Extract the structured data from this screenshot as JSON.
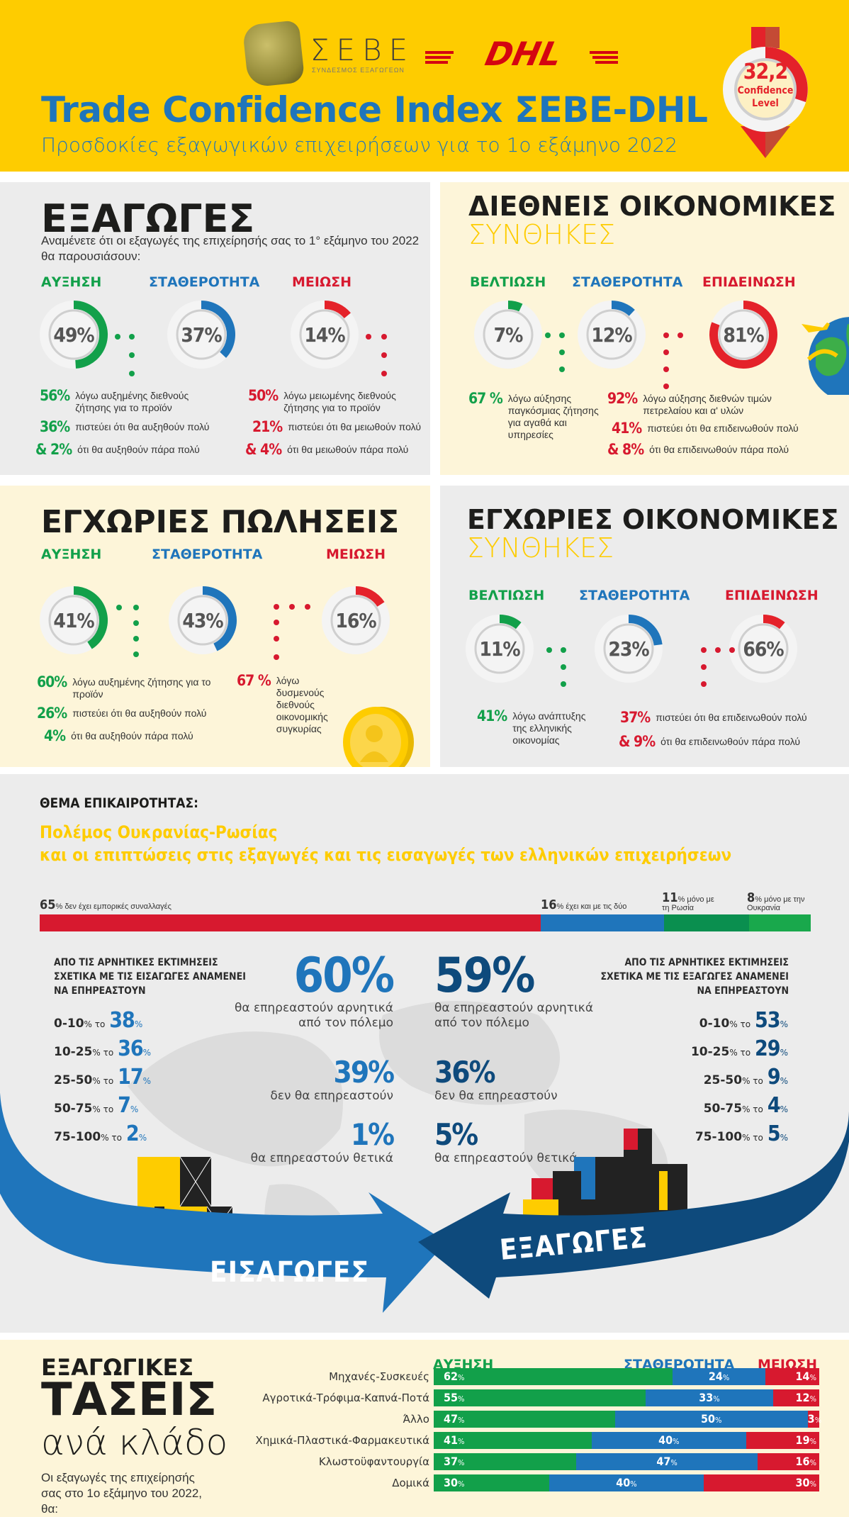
{
  "header": {
    "sebe_name": "ΣΕΒΕ",
    "sebe_subtitle": "ΣΥΝΔΕΣΜΟΣ ΕΞΑΓΩΓΕΩΝ",
    "dhl_logo": "DHL",
    "title": "Trade Confidence Index ΣΕΒΕ-DHL",
    "subtitle": "Προσδοκίες εξαγωγικών επιχειρήσεων για το 1ο εξάμηνο 2022",
    "confidence": {
      "value": "32,2",
      "label1": "Confidence",
      "label2": "Level",
      "icon": "down-arrow-gauge-icon"
    }
  },
  "colors": {
    "yellow": "#fecc00",
    "green": "#12a04a",
    "blue": "#1f75bb",
    "red": "#d7192f",
    "dark_blue": "#0e4a7c",
    "grey_bg": "#ececec",
    "cream_bg": "#fdf5d9"
  },
  "exports": {
    "title": "ΕΞΑΓΩΓΕΣ",
    "question": "Αναμένετε ότι οι εξαγωγές της επιχείρησής σας το 1° εξάμηνο του 2022 θα παρουσιάσουν:",
    "labels": [
      "ΑΥΞΗΣΗ",
      "ΣΤΑΘΕΡΟΤΗΤΑ",
      "ΜΕΙΩΣΗ"
    ],
    "values": [
      "49%",
      "37%",
      "14%"
    ],
    "increase_stats": [
      {
        "num": "56%",
        "text": "λόγω αυξημένης διεθνούς ζήτησης για το προϊόν"
      },
      {
        "num": "36%",
        "text": "πιστεύει ότι θα αυξηθούν πολύ"
      },
      {
        "num": "& 2%",
        "text": "ότι θα αυξηθούν πάρα πολύ"
      }
    ],
    "decrease_stats": [
      {
        "num": "50%",
        "text": "λόγω μειωμένης διεθνούς ζήτησης για το προϊόν"
      },
      {
        "num": "21%",
        "text": "πιστεύει ότι θα μειωθούν πολύ"
      },
      {
        "num": "& 4%",
        "text": "ότι θα μειωθούν πάρα πολύ"
      }
    ]
  },
  "intl": {
    "title": "ΔΙΕΘΝΕΙΣ ΟΙΚΟΝΟΜΙΚΕΣ",
    "title2": "ΣΥΝΘΗΚΕΣ",
    "labels": [
      "ΒΕΛΤΙΩΣΗ",
      "ΣΤΑΘΕΡΟΤΗΤΑ",
      "ΕΠΙΔΕΙΝΩΣΗ"
    ],
    "values": [
      "7%",
      "12%",
      "81%"
    ],
    "improve_stats": [
      {
        "num": "67 %",
        "text": "λόγω αύξησης παγκόσμιας ζήτησης για αγαθά και υπηρεσίες"
      }
    ],
    "worsen_stats": [
      {
        "num": "92%",
        "text": "λόγω αύξησης διεθνών τιμών πετρελαίου και α' υλών"
      },
      {
        "num": "41%",
        "text": "πιστεύει ότι θα επιδεινωθούν πολύ"
      },
      {
        "num": "& 8%",
        "text": "ότι θα επιδεινωθούν πάρα πολύ"
      }
    ]
  },
  "domestic_sales": {
    "title": "ΕΓΧΩΡΙΕΣ ΠΩΛΗΣΕΙΣ",
    "labels": [
      "ΑΥΞΗΣΗ",
      "ΣΤΑΘΕΡΟΤΗΤΑ",
      "ΜΕΙΩΣΗ"
    ],
    "values": [
      "41%",
      "43%",
      "16%"
    ],
    "increase_stats": [
      {
        "num": "60%",
        "text": "λόγω αυξημένης ζήτησης για το προϊόν"
      },
      {
        "num": "26%",
        "text": "πιστεύει ότι θα αυξηθούν πολύ"
      },
      {
        "num": "4%",
        "text": "ότι θα αυξηθούν πάρα πολύ"
      }
    ],
    "decrease_stats": [
      {
        "num": "67 %",
        "text": "λόγω δυσμενούς διεθνούς οικονομικής συγκυρίας"
      }
    ]
  },
  "domestic_econ": {
    "title": "ΕΓΧΩΡΙΕΣ ΟΙΚΟΝΟΜΙΚΕΣ",
    "title2": "ΣΥΝΘΗΚΕΣ",
    "labels": [
      "ΒΕΛΤΙΩΣΗ",
      "ΣΤΑΘΕΡΟΤΗΤΑ",
      "ΕΠΙΔΕΙΝΩΣΗ"
    ],
    "values": [
      "11%",
      "23%",
      "66%"
    ],
    "improve_stats": [
      {
        "num": "41%",
        "text": "λόγω ανάπτυξης της ελληνικής οικονομίας"
      }
    ],
    "worsen_stats": [
      {
        "num": "37%",
        "text": "πιστεύει ότι θα επιδεινωθούν πολύ"
      },
      {
        "num": "& 9%",
        "text": "ότι θα επιδεινωθούν πάρα πολύ"
      }
    ]
  },
  "topic": {
    "kicker": "ΘΕΜΑ ΕΠΙΚΑΙΡΟΤΗΤΑΣ:",
    "headline1": "Πολέμος Ουκρανίας-Ρωσίας",
    "headline2": "και οι επιπτώσεις στις εξαγωγές και τις εισαγωγές των ελληνικών επιχειρήσεων",
    "trade_bar": [
      {
        "num": "65",
        "text": "% δεν έχει εμπορικές συναλλαγές",
        "value": 65,
        "color": "#d7192f"
      },
      {
        "num": "16",
        "text": "% έχει και με τις δύο",
        "value": 16,
        "color": "#1f75bb"
      },
      {
        "num": "11",
        "text": "% μόνο με τη Ρωσία",
        "value": 11,
        "color": "#0a8f4f"
      },
      {
        "num": "8",
        "text": "% μόνο με την Ουκρανία",
        "value": 8,
        "color": "#19a84c"
      }
    ],
    "imports": {
      "heading": "ΑΠΟ ΤΙΣ ΑΡΝΗΤΙΚΕΣ ΕΚΤΙΜΗΣΕΙΣ ΣΧΕΤΙΚΑ ΜΕ ΤΙΣ ΕΙΣΑΓΩΓΕΣ ΑΝΑΜΕΝΕΙ ΝΑ ΕΠΗΡΕΑΣΤΟΥΝ",
      "ranges": [
        {
          "range": "0-10",
          "value": "38"
        },
        {
          "range": "10-25",
          "value": "36"
        },
        {
          "range": "25-50",
          "value": "17"
        },
        {
          "range": "50-75",
          "value": "7"
        },
        {
          "range": "75-100",
          "value": "2"
        }
      ],
      "big": [
        {
          "value": "60%",
          "text": "θα επηρεαστούν αρνητικά από τον πόλεμο"
        },
        {
          "value": "39%",
          "text": "δεν θα επηρεαστούν"
        },
        {
          "value": "1%",
          "text": "θα επηρεαστούν θετικά"
        }
      ],
      "arrow_label": "ΕΙΣΑΓΩΓΕΣ"
    },
    "exports": {
      "heading": "ΑΠΟ ΤΙΣ ΑΡΝΗΤΙΚΕΣ ΕΚΤΙΜΗΣΕΙΣ ΣΧΕΤΙΚΑ ΜΕ ΤΙΣ ΕΞΑΓΩΓΕΣ ΑΝΑΜΕΝΕΙ ΝΑ ΕΠΗΡΕΑΣΤΟΥΝ",
      "ranges": [
        {
          "range": "0-10",
          "value": "53"
        },
        {
          "range": "10-25",
          "value": "29"
        },
        {
          "range": "25-50",
          "value": "9"
        },
        {
          "range": "50-75",
          "value": "4"
        },
        {
          "range": "75-100",
          "value": "5"
        }
      ],
      "big": [
        {
          "value": "59%",
          "text": "θα επηρεαστούν αρνητικά από τον πόλεμο"
        },
        {
          "value": "36%",
          "text": "δεν θα επηρεαστούν"
        },
        {
          "value": "5%",
          "text": "θα επηρεαστούν θετικά"
        }
      ],
      "arrow_label": "ΕΞΑΓΩΓΕΣ"
    },
    "range_suffix": "% το",
    "pct": "%"
  },
  "sector": {
    "title1": "ΕΞΑΓΩΓΙΚΕΣ",
    "title2": "ΤΑΣΕΙΣ",
    "title3": "ανά κλάδο",
    "desc": "Οι εξαγωγές της επιχείρησής σας στο 1ο εξάμηνο του 2022, θα:",
    "legend": [
      "ΑΥΞΗΣΗ",
      "ΣΤΑΘΕΡΟΤΗΤΑ",
      "ΜΕΙΩΣΗ"
    ]
  },
  "chart_data": {
    "type": "bar",
    "title": "ΕΞΑΓΩΓΙΚΕΣ ΤΑΣΕΙΣ ανά κλάδο",
    "stacked": true,
    "orientation": "horizontal",
    "categories": [
      "Μηχανές-Συσκευές",
      "Αγροτικά-Τρόφιμα-Καπνά-Ποτά",
      "Άλλο",
      "Χημικά-Πλαστικά-Φαρμακευτικά",
      "Κλωστοϋφαντουργία",
      "Δομικά"
    ],
    "series": [
      {
        "name": "ΑΥΞΗΣΗ",
        "color": "#12a04a",
        "values": [
          62,
          55,
          47,
          41,
          37,
          30
        ]
      },
      {
        "name": "ΣΤΑΘΕΡΟΤΗΤΑ",
        "color": "#1f75bb",
        "values": [
          24,
          33,
          50,
          40,
          47,
          40
        ]
      },
      {
        "name": "ΜΕΙΩΣΗ",
        "color": "#d7192f",
        "values": [
          14,
          12,
          3,
          19,
          16,
          30
        ]
      }
    ],
    "xlabel": "",
    "ylabel": "",
    "xlim": [
      0,
      100
    ],
    "legend_position": "top"
  }
}
